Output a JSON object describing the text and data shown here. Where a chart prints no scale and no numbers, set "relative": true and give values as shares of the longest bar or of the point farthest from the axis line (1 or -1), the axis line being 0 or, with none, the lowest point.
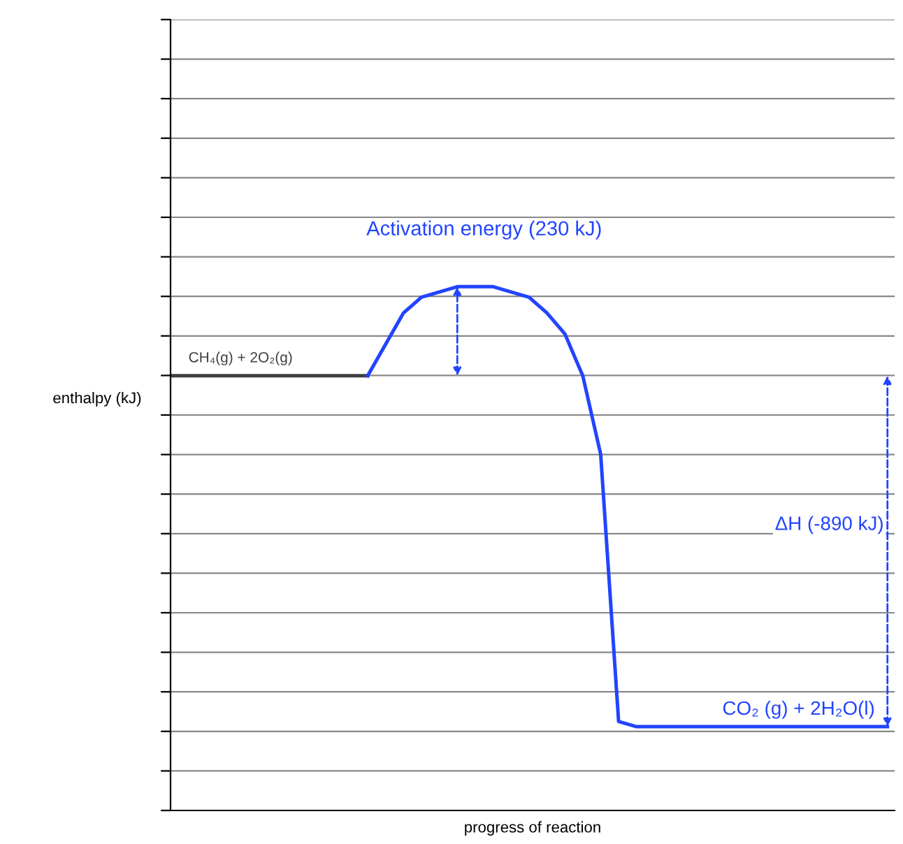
{
  "chart_data": {
    "type": "line",
    "relative": true,
    "xlabel": "progress of reaction",
    "ylabel": "enthalpy (kJ)",
    "grid": "y",
    "marker": "none",
    "line_style": "solid",
    "categories": [
      null,
      null,
      null,
      null,
      null,
      null,
      null,
      null,
      null,
      null,
      null,
      null,
      null,
      null,
      null,
      null,
      null,
      null,
      null,
      null,
      null,
      null,
      null,
      null,
      null,
      null,
      null,
      null,
      null,
      null,
      null,
      null,
      null,
      null,
      null,
      null,
      null,
      null,
      null,
      null,
      null
    ],
    "series": [
      {
        "color": "#404040",
        "values": [
          0.83,
          0.83,
          0.83,
          0.83,
          0.83,
          0.83,
          0.83,
          0.83,
          0.83,
          0.83,
          0.83,
          0.83,
          null,
          null,
          null,
          null,
          null,
          null,
          null,
          null,
          null,
          null,
          null,
          null,
          null,
          null,
          null,
          null,
          null,
          null,
          null,
          null,
          null,
          null,
          null,
          null,
          null,
          null,
          null,
          null,
          null
        ]
      },
      {
        "color": "#2244ff",
        "values": [
          null,
          null,
          null,
          null,
          null,
          null,
          null,
          null,
          null,
          null,
          null,
          0.83,
          0.89,
          0.95,
          0.98,
          0.99,
          1,
          1,
          1,
          0.99,
          0.98,
          0.95,
          0.91,
          0.83,
          0.68,
          0.17,
          0.16,
          0.16,
          0.16,
          0.16,
          0.16,
          0.16,
          0.16,
          0.16,
          0.16,
          0.16,
          0.16,
          0.16,
          0.16,
          0.16,
          0.16
        ]
      }
    ],
    "annotations": [
      "Activation energy (230 kJ)",
      "CH₄(g) + 2O₂(g)",
      "ΔH (-890 kJ)",
      "CO₂ (g) + 2H₂O(l)"
    ]
  }
}
